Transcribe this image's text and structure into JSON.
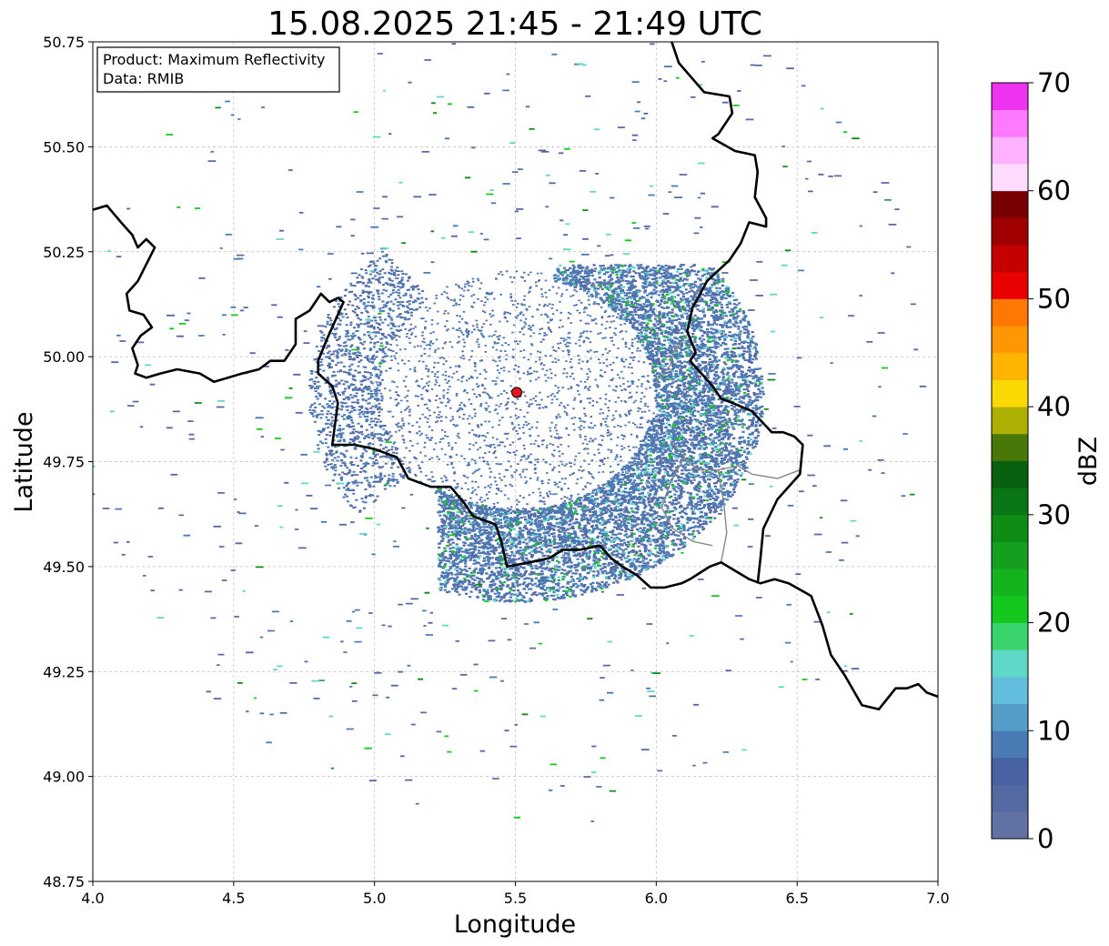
{
  "chart_data": {
    "type": "heatmap",
    "title": "15.08.2025 21:45 - 21:49 UTC",
    "xlabel": "Longitude",
    "ylabel": "Latitude",
    "xlim": [
      4.0,
      7.0
    ],
    "ylim": [
      48.75,
      50.75
    ],
    "x_ticks": [
      "4.0",
      "4.5",
      "5.0",
      "5.5",
      "6.0",
      "6.5",
      "7.0"
    ],
    "y_ticks": [
      "48.75",
      "49.00",
      "49.25",
      "49.50",
      "49.75",
      "50.00",
      "50.25",
      "50.50",
      "50.75"
    ],
    "grid": true,
    "annotation": {
      "line1": "Product: Maximum Reflectivity",
      "line2": "Data: RMIB"
    },
    "radar_site": {
      "lon": 5.505,
      "lat": 49.915,
      "color": "#e8141e"
    },
    "colorbar": {
      "label": "dBZ",
      "min": 0,
      "max": 70,
      "step": 2.5,
      "tick_labels": [
        "0",
        "10",
        "20",
        "30",
        "40",
        "50",
        "60",
        "70"
      ],
      "colors": [
        "#6272a4",
        "#556aa3",
        "#4862a3",
        "#4a7bb5",
        "#539dc8",
        "#62bedc",
        "#60d8c8",
        "#3ad46c",
        "#14c81e",
        "#14b41e",
        "#14a01e",
        "#0e8c14",
        "#0a7514",
        "#06600e",
        "#4a7808",
        "#afb004",
        "#f9d804",
        "#ffb404",
        "#ff9604",
        "#ff7804",
        "#e80000",
        "#c40000",
        "#a00000",
        "#780000",
        "#ffdcff",
        "#ffb2ff",
        "#ff7aff",
        "#ef32ef"
      ]
    },
    "borders": {
      "national": [
        [
          [
            4.0,
            50.35
          ],
          [
            4.05,
            50.36
          ],
          [
            4.1,
            50.32
          ],
          [
            4.14,
            50.29
          ],
          [
            4.16,
            50.26
          ],
          [
            4.19,
            50.28
          ],
          [
            4.22,
            50.26
          ],
          [
            4.19,
            50.22
          ],
          [
            4.16,
            50.18
          ],
          [
            4.12,
            50.15
          ],
          [
            4.13,
            50.11
          ],
          [
            4.18,
            50.1
          ],
          [
            4.21,
            50.07
          ],
          [
            4.17,
            50.05
          ],
          [
            4.14,
            50.02
          ],
          [
            4.16,
            49.98
          ],
          [
            4.15,
            49.96
          ],
          [
            4.19,
            49.95
          ],
          [
            4.24,
            49.96
          ],
          [
            4.3,
            49.97
          ],
          [
            4.38,
            49.96
          ],
          [
            4.43,
            49.94
          ],
          [
            4.48,
            49.95
          ],
          [
            4.53,
            49.96
          ],
          [
            4.59,
            49.97
          ],
          [
            4.63,
            49.99
          ],
          [
            4.68,
            49.99
          ],
          [
            4.69,
            50.0
          ],
          [
            4.72,
            50.03
          ],
          [
            4.72,
            50.09
          ],
          [
            4.77,
            50.11
          ],
          [
            4.81,
            50.15
          ],
          [
            4.84,
            50.13
          ],
          [
            4.87,
            50.14
          ],
          [
            4.89,
            50.13
          ],
          [
            4.85,
            50.07
          ],
          [
            4.83,
            50.04
          ],
          [
            4.8,
            49.99
          ],
          [
            4.8,
            49.96
          ],
          [
            4.85,
            49.93
          ],
          [
            4.87,
            49.89
          ],
          [
            4.86,
            49.84
          ],
          [
            4.85,
            49.79
          ],
          [
            4.93,
            49.79
          ],
          [
            5.0,
            49.78
          ],
          [
            5.08,
            49.76
          ],
          [
            5.12,
            49.71
          ],
          [
            5.2,
            49.69
          ],
          [
            5.27,
            49.69
          ],
          [
            5.32,
            49.65
          ],
          [
            5.35,
            49.62
          ],
          [
            5.43,
            49.6
          ],
          [
            5.45,
            49.56
          ],
          [
            5.47,
            49.5
          ],
          [
            5.55,
            49.51
          ],
          [
            5.62,
            49.52
          ],
          [
            5.67,
            49.54
          ],
          [
            5.73,
            49.54
          ],
          [
            5.8,
            49.55
          ],
          [
            5.84,
            49.52
          ],
          [
            5.88,
            49.5
          ],
          [
            5.93,
            49.48
          ],
          [
            5.98,
            49.45
          ],
          [
            6.03,
            49.45
          ],
          [
            6.09,
            49.46
          ],
          [
            6.12,
            49.47
          ],
          [
            6.19,
            49.5
          ],
          [
            6.23,
            49.51
          ],
          [
            6.28,
            49.49
          ],
          [
            6.33,
            49.47
          ],
          [
            6.37,
            49.46
          ],
          [
            6.42,
            49.47
          ],
          [
            6.47,
            49.46
          ],
          [
            6.55,
            49.43
          ],
          [
            6.59,
            49.36
          ],
          [
            6.62,
            49.29
          ],
          [
            6.67,
            49.24
          ],
          [
            6.73,
            49.17
          ],
          [
            6.79,
            49.16
          ],
          [
            6.85,
            49.21
          ],
          [
            6.89,
            49.21
          ],
          [
            6.93,
            49.22
          ],
          [
            6.96,
            49.2
          ],
          [
            7.0,
            49.19
          ]
        ],
        [
          [
            6.05,
            50.76
          ],
          [
            6.08,
            50.7
          ],
          [
            6.17,
            50.63
          ],
          [
            6.26,
            50.62
          ],
          [
            6.27,
            50.58
          ],
          [
            6.22,
            50.53
          ],
          [
            6.2,
            50.52
          ],
          [
            6.28,
            50.49
          ],
          [
            6.35,
            50.48
          ],
          [
            6.36,
            50.44
          ],
          [
            6.35,
            50.38
          ],
          [
            6.39,
            50.33
          ],
          [
            6.39,
            50.31
          ],
          [
            6.33,
            50.32
          ],
          [
            6.3,
            50.27
          ],
          [
            6.26,
            50.23
          ],
          [
            6.18,
            50.18
          ],
          [
            6.14,
            50.13
          ],
          [
            6.13,
            50.12
          ],
          [
            6.11,
            50.06
          ],
          [
            6.14,
            50.01
          ],
          [
            6.12,
            49.99
          ],
          [
            6.2,
            49.93
          ],
          [
            6.23,
            49.9
          ],
          [
            6.27,
            49.89
          ],
          [
            6.34,
            49.87
          ],
          [
            6.41,
            49.82
          ],
          [
            6.45,
            49.82
          ],
          [
            6.49,
            49.81
          ],
          [
            6.52,
            49.79
          ],
          [
            6.51,
            49.72
          ],
          [
            6.43,
            49.66
          ],
          [
            6.38,
            49.59
          ],
          [
            6.37,
            49.52
          ],
          [
            6.36,
            49.46
          ]
        ]
      ],
      "regional": [
        [
          [
            6.12,
            50.06
          ],
          [
            6.06,
            50.01
          ],
          [
            6.05,
            49.98
          ],
          [
            6.0,
            49.94
          ]
        ],
        [
          [
            6.05,
            49.8
          ],
          [
            6.1,
            49.76
          ],
          [
            6.15,
            49.73
          ],
          [
            6.22,
            49.73
          ],
          [
            6.29,
            49.74
          ],
          [
            6.34,
            49.72
          ],
          [
            6.43,
            49.71
          ],
          [
            6.51,
            49.73
          ]
        ],
        [
          [
            6.1,
            49.76
          ],
          [
            6.05,
            49.7
          ],
          [
            6.02,
            49.64
          ],
          [
            6.06,
            49.59
          ],
          [
            6.13,
            49.56
          ],
          [
            6.2,
            49.55
          ]
        ],
        [
          [
            6.22,
            49.73
          ],
          [
            6.24,
            49.65
          ],
          [
            6.25,
            49.58
          ],
          [
            6.23,
            49.51
          ]
        ]
      ]
    }
  }
}
